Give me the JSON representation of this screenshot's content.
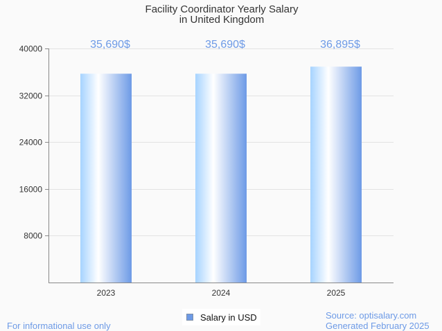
{
  "chart_data": {
    "type": "bar",
    "title": [
      "Facility Coordinator Yearly Salary",
      "in United Kingdom"
    ],
    "categories": [
      "2023",
      "2024",
      "2025"
    ],
    "values": [
      35690,
      35690,
      36895
    ],
    "data_labels": [
      "35,690$",
      "35,690$",
      "36,895$"
    ],
    "xlabel": "",
    "ylabel": "",
    "ylim": [
      0,
      40000
    ],
    "yticks": [
      8000,
      16000,
      24000,
      32000,
      40000
    ],
    "grid": true,
    "legend": {
      "entries": [
        "Salary in USD"
      ],
      "placement": "bottom-center"
    },
    "colors": {
      "bar_light": "#a6d3ff",
      "bar_dark": "#6d9ae6",
      "label": "#6d9ae6"
    }
  },
  "footer": {
    "disclaimer": "For informational use only",
    "source": "Source: optisalary.com",
    "generated": "Generated February 2025"
  }
}
